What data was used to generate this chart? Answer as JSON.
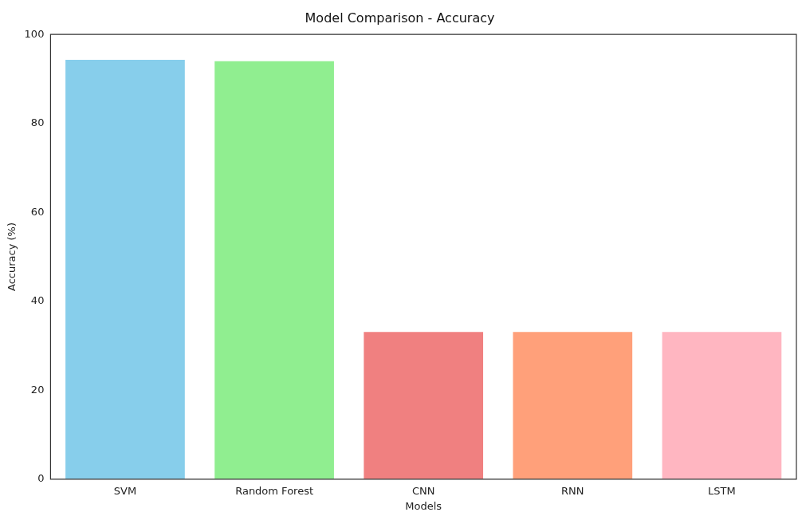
{
  "chart_data": {
    "type": "bar",
    "title": "Model Comparison - Accuracy",
    "xlabel": "Models",
    "ylabel": "Accuracy (%)",
    "categories": [
      "SVM",
      "Random Forest",
      "CNN",
      "RNN",
      "LSTM"
    ],
    "values": [
      94.3,
      94.0,
      33.1,
      33.1,
      33.1
    ],
    "colors": [
      "#87ceeb",
      "#90ee90",
      "#f08080",
      "#ffa07a",
      "#ffb6c1"
    ],
    "ylim": [
      0,
      100
    ],
    "yticks": [
      0,
      20,
      40,
      60,
      80,
      100
    ],
    "grid": false,
    "legend": false
  }
}
